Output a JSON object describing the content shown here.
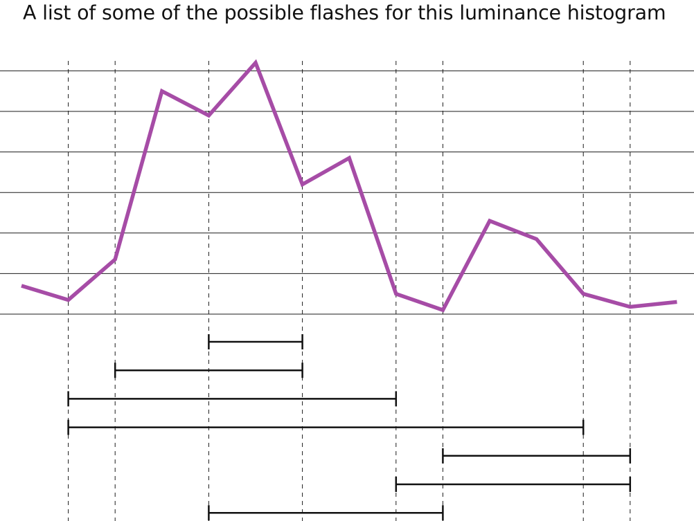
{
  "chart_data": {
    "type": "line",
    "title": "A list of some of the possible flashes for this luminance histogram",
    "xlabel": "",
    "ylabel": "",
    "x": [
      0,
      1,
      2,
      3,
      4,
      5,
      6,
      7,
      8,
      9,
      10,
      11,
      12,
      13,
      14
    ],
    "series": [
      {
        "values": [
          0.7,
          0.35,
          1.35,
          5.5,
          4.9,
          6.2,
          3.2,
          3.85,
          0.5,
          0.1,
          2.3,
          1.85,
          0.5,
          0.18,
          0.3
        ]
      }
    ],
    "ylim": [
      0,
      6
    ],
    "ygrid": true,
    "yticks": [
      0,
      1,
      2,
      3,
      4,
      5,
      6
    ],
    "marker_x": [
      1,
      2,
      4,
      6,
      8,
      9,
      12,
      13
    ],
    "flashes": [
      [
        4,
        6
      ],
      [
        2,
        6
      ],
      [
        1,
        8
      ],
      [
        1,
        12
      ],
      [
        9,
        13
      ],
      [
        8,
        13
      ],
      [
        4,
        9
      ]
    ],
    "colors": {
      "line": "#a64ca6",
      "grid": "#1a1a1a",
      "guide": "#1a1a1a",
      "bracket": "#111111",
      "text": "#111111"
    }
  }
}
